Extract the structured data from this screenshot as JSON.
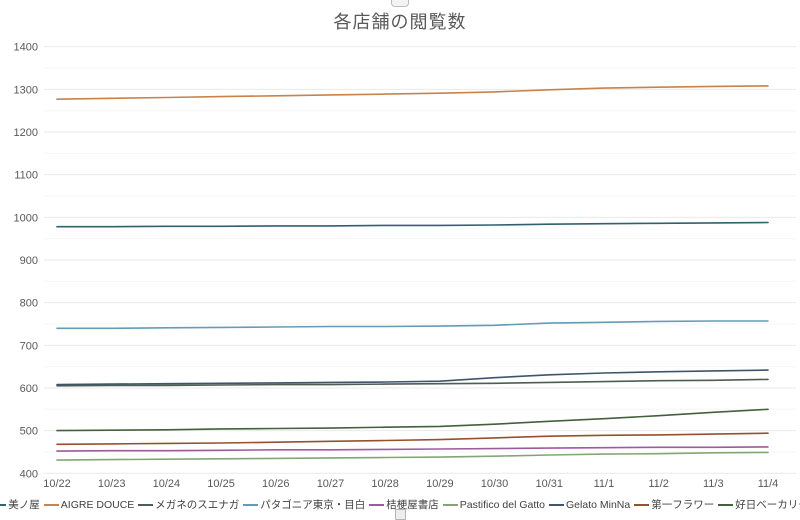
{
  "chart_data": {
    "type": "line",
    "title": "各店舗の閲覧数",
    "xlabel": "",
    "ylabel": "",
    "x": [
      "10/22",
      "10/23",
      "10/24",
      "10/25",
      "10/26",
      "10/27",
      "10/28",
      "10/29",
      "10/30",
      "10/31",
      "11/1",
      "11/2",
      "11/3",
      "11/4"
    ],
    "ylim": [
      400,
      1400
    ],
    "ytick_step": 100,
    "grid": true,
    "legend_position": "bottom",
    "axis_text_color": "#595959",
    "major_grid_color": "#e9e9e9",
    "minor_grid_color": "#f5f5f5",
    "series": [
      {
        "name": "美ノ屋",
        "color": "#31606f",
        "values": [
          978,
          978,
          979,
          979,
          980,
          980,
          981,
          981,
          982,
          984,
          985,
          986,
          987,
          988
        ]
      },
      {
        "name": "AIGRE DOUCE",
        "color": "#c8824a",
        "values": [
          1277,
          1279,
          1281,
          1283,
          1285,
          1287,
          1289,
          1291,
          1294,
          1299,
          1303,
          1305,
          1307,
          1308
        ]
      },
      {
        "name": "メガネのスエナガ",
        "color": "#4d5f52",
        "values": [
          605,
          606,
          606,
          607,
          608,
          608,
          609,
          610,
          611,
          613,
          615,
          617,
          618,
          620
        ]
      },
      {
        "name": "パタゴニア東京・目白",
        "color": "#649cb5",
        "values": [
          740,
          740,
          741,
          742,
          743,
          744,
          744,
          745,
          747,
          752,
          754,
          756,
          757,
          757
        ]
      },
      {
        "name": "桔梗屋書店",
        "color": "#9e5b9b",
        "values": [
          452,
          453,
          453,
          454,
          455,
          455,
          456,
          457,
          458,
          459,
          460,
          461,
          461,
          462
        ]
      },
      {
        "name": "Pastifico del Gatto",
        "color": "#83a674",
        "values": [
          431,
          432,
          433,
          434,
          435,
          436,
          437,
          438,
          440,
          443,
          445,
          446,
          448,
          449
        ]
      },
      {
        "name": "Gelato MinNa",
        "color": "#3f5569",
        "values": [
          608,
          609,
          610,
          611,
          612,
          613,
          614,
          616,
          624,
          631,
          635,
          638,
          640,
          642
        ]
      },
      {
        "name": "第一フラワー",
        "color": "#95512e",
        "values": [
          468,
          469,
          470,
          471,
          473,
          475,
          477,
          479,
          483,
          487,
          489,
          490,
          492,
          494
        ]
      },
      {
        "name": "好日ベーカリー",
        "color": "#44603d",
        "values": [
          500,
          501,
          502,
          504,
          505,
          506,
          508,
          510,
          515,
          522,
          528,
          535,
          543,
          550
        ]
      }
    ]
  }
}
